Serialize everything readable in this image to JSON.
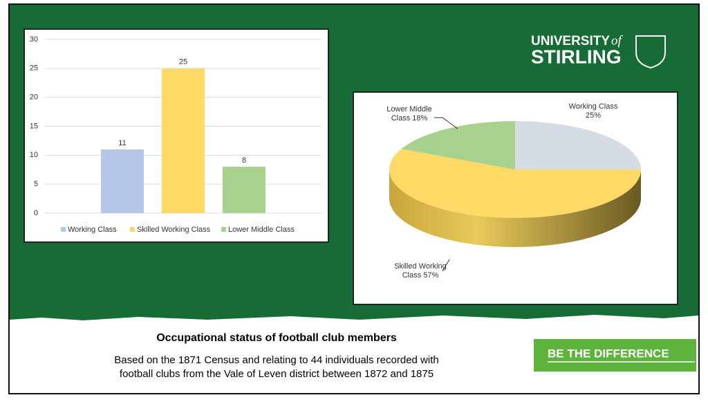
{
  "chart_data": [
    {
      "type": "bar",
      "series": [
        {
          "name": "Working Class",
          "color": "#b4c7e7",
          "values": [
            11
          ]
        },
        {
          "name": "Skilled Working Class",
          "color": "#ffd966",
          "values": [
            25
          ]
        },
        {
          "name": "Lower Middle Class",
          "color": "#a9d18e",
          "values": [
            8
          ]
        }
      ],
      "ylim": [
        0,
        30
      ],
      "yticks": [
        0,
        5,
        10,
        15,
        20,
        25,
        30
      ],
      "grid": true,
      "legend": "bottom"
    },
    {
      "type": "pie",
      "categories": [
        "Working Class",
        "Skilled Working Class",
        "Lower Middle Class"
      ],
      "values": [
        25,
        57,
        18
      ],
      "value_labels": [
        "Working Class\n25%",
        "Skilled Working\nClass 57%",
        "Lower Middle\nClass 18%"
      ],
      "colors": [
        "#d6dce4",
        "#ffd966",
        "#a9d18e"
      ]
    }
  ],
  "logo": {
    "university": "UNIVERSITY",
    "of": "of",
    "name": "STIRLING"
  },
  "slogan": "BE THE DIFFERENCE",
  "caption": {
    "title": "Occupational status of football club members",
    "lines": [
      "Based on the 1871 Census and relating to 44 individuals recorded with",
      "football clubs from the Vale of Leven district between 1872 and 1875"
    ]
  }
}
